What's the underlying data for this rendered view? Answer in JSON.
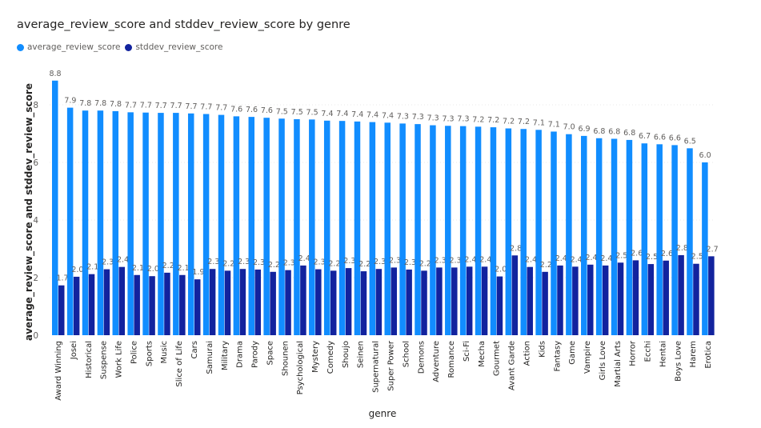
{
  "colors": {
    "average": "#118DFF",
    "stddev": "#12239E"
  },
  "chart_data": {
    "type": "bar",
    "title": "average_review_score and stddev_review_score by genre",
    "xlabel": "genre",
    "ylabel": "average_review_score and stddev_review_score",
    "ylim": [
      0,
      9
    ],
    "yticks": [
      "0",
      "2",
      "4",
      "6",
      "8"
    ],
    "legend_position": "top-left",
    "categories": [
      "Award Winning",
      "Josei",
      "Historical",
      "Suspense",
      "Work Life",
      "Police",
      "Sports",
      "Music",
      "Slice of Life",
      "Cars",
      "Samurai",
      "Military",
      "Drama",
      "Parody",
      "Space",
      "Shounen",
      "Psychological",
      "Mystery",
      "Comedy",
      "Shoujo",
      "Seinen",
      "Supernatural",
      "Super Power",
      "School",
      "Demons",
      "Adventure",
      "Romance",
      "Sci-Fi",
      "Mecha",
      "Gourmet",
      "Avant Garde",
      "Action",
      "Kids",
      "Fantasy",
      "Game",
      "Vampire",
      "Girls Love",
      "Martial Arts",
      "Horror",
      "Ecchi",
      "Hentai",
      "Boys Love",
      "Harem",
      "Erotica"
    ],
    "series": [
      {
        "name": "average_review_score",
        "values": [
          8.84,
          7.9,
          7.8,
          7.8,
          7.78,
          7.74,
          7.73,
          7.72,
          7.72,
          7.7,
          7.68,
          7.65,
          7.6,
          7.58,
          7.55,
          7.52,
          7.5,
          7.49,
          7.45,
          7.44,
          7.42,
          7.4,
          7.38,
          7.35,
          7.33,
          7.29,
          7.27,
          7.26,
          7.24,
          7.22,
          7.18,
          7.16,
          7.13,
          7.07,
          6.98,
          6.92,
          6.84,
          6.82,
          6.78,
          6.66,
          6.63,
          6.6,
          6.49,
          6.0
        ],
        "labels": [
          "8.8",
          "7.9",
          "7.8",
          "7.8",
          "7.8",
          "7.7",
          "7.7",
          "7.7",
          "7.7",
          "7.7",
          "7.7",
          "7.7",
          "7.6",
          "7.6",
          "7.6",
          "7.5",
          "7.5",
          "7.5",
          "7.4",
          "7.4",
          "7.4",
          "7.4",
          "7.4",
          "7.3",
          "7.3",
          "7.3",
          "7.3",
          "7.3",
          "7.2",
          "7.2",
          "7.2",
          "7.2",
          "7.1",
          "7.1",
          "7.0",
          "6.9",
          "6.8",
          "6.8",
          "6.8",
          "6.7",
          "6.6",
          "6.6",
          "6.5",
          "6.0"
        ]
      },
      {
        "name": "stddev_review_score",
        "values": [
          1.73,
          2.03,
          2.12,
          2.29,
          2.37,
          2.09,
          2.05,
          2.17,
          2.09,
          1.94,
          2.3,
          2.24,
          2.3,
          2.28,
          2.2,
          2.26,
          2.42,
          2.29,
          2.24,
          2.33,
          2.22,
          2.3,
          2.35,
          2.28,
          2.24,
          2.35,
          2.35,
          2.38,
          2.38,
          2.04,
          2.77,
          2.37,
          2.2,
          2.42,
          2.38,
          2.45,
          2.42,
          2.52,
          2.6,
          2.47,
          2.59,
          2.78,
          2.48,
          2.74
        ],
        "labels": [
          "1.7",
          "2.0",
          "2.1",
          "2.3",
          "2.4",
          "2.1",
          "2.0",
          "2.2",
          "2.1",
          "1.9",
          "2.3",
          "2.2",
          "2.3",
          "2.3",
          "2.2",
          "2.3",
          "2.4",
          "2.3",
          "2.2",
          "2.3",
          "2.2",
          "2.3",
          "2.3",
          "2.3",
          "2.2",
          "2.3",
          "2.3",
          "2.4",
          "2.4",
          "2.0",
          "2.8",
          "2.4",
          "2.2",
          "2.4",
          "2.4",
          "2.4",
          "2.4",
          "2.5",
          "2.6",
          "2.5",
          "2.6",
          "2.8",
          "2.5",
          "2.7"
        ]
      }
    ]
  }
}
